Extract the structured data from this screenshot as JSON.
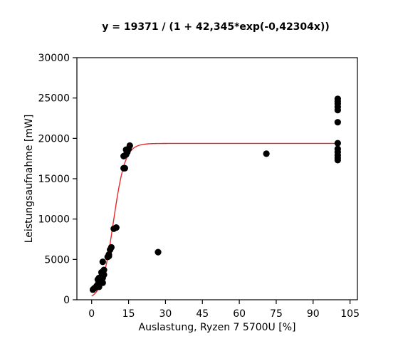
{
  "chart_data": {
    "type": "scatter",
    "title": "y = 19371 / (1 + 42,345*exp(-0,42304x))",
    "xlabel": "Auslastung, Ryzen 7 5700U [%]",
    "ylabel": "Leistungsaufnahme [mW]",
    "xlim": [
      -6,
      108
    ],
    "ylim": [
      0,
      30000
    ],
    "xticks": [
      0,
      15,
      30,
      45,
      60,
      75,
      90,
      105
    ],
    "yticks": [
      0,
      5000,
      10000,
      15000,
      20000,
      25000,
      30000
    ],
    "grid": false,
    "legend": "none",
    "colors": {
      "points": "#000000",
      "fit": "#e8282a",
      "axes": "#000000"
    },
    "fit": {
      "L": 19371,
      "a": 42.345,
      "k": 0.42304
    },
    "points": [
      [
        0.5,
        1250
      ],
      [
        1.0,
        1400
      ],
      [
        1.5,
        1500
      ],
      [
        2.0,
        1700
      ],
      [
        2.5,
        1900
      ],
      [
        3.0,
        1600
      ],
      [
        3.5,
        2100
      ],
      [
        2.5,
        2500
      ],
      [
        3.0,
        2700
      ],
      [
        3.5,
        2300
      ],
      [
        4.0,
        2900
      ],
      [
        4.5,
        2100
      ],
      [
        4.5,
        2700
      ],
      [
        5.0,
        3100
      ],
      [
        4.0,
        3400
      ],
      [
        5.0,
        3700
      ],
      [
        4.5,
        4700
      ],
      [
        6.5,
        5300
      ],
      [
        7.0,
        5600
      ],
      [
        7.5,
        6200
      ],
      [
        8.0,
        6500
      ],
      [
        7.0,
        5400
      ],
      [
        9.0,
        8800
      ],
      [
        10.0,
        8950
      ],
      [
        13.0,
        16300
      ],
      [
        13.5,
        16300
      ],
      [
        13.0,
        17800
      ],
      [
        14.0,
        18000
      ],
      [
        14.5,
        18300
      ],
      [
        15.0,
        18700
      ],
      [
        15.5,
        19100
      ],
      [
        14.0,
        18600
      ],
      [
        27.0,
        5900
      ],
      [
        71.0,
        18100
      ],
      [
        100,
        24900
      ],
      [
        100,
        24600
      ],
      [
        100,
        24300
      ],
      [
        100,
        23900
      ],
      [
        100,
        23500
      ],
      [
        100,
        22000
      ],
      [
        100,
        19400
      ],
      [
        100,
        18700
      ],
      [
        100,
        18300
      ],
      [
        100,
        17900
      ],
      [
        100,
        17600
      ],
      [
        100,
        17300
      ]
    ]
  }
}
